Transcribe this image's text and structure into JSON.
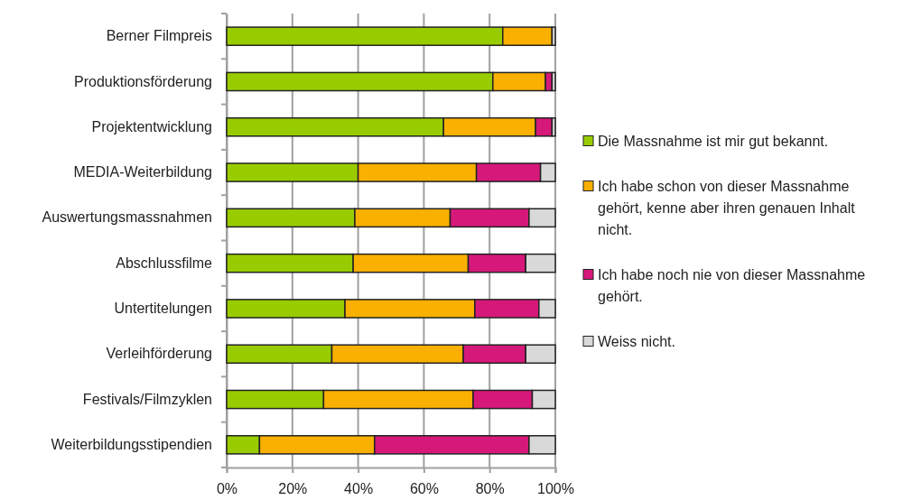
{
  "chart_data": {
    "type": "bar",
    "orientation": "horizontal",
    "stacked": true,
    "categories": [
      "Berner Filmpreis",
      "Produktionsförderung",
      "Projektentwicklung",
      "MEDIA-Weiterbildung",
      "Auswertungsmassnahmen",
      "Abschlussfilme",
      "Untertitelungen",
      "Verleihförderung",
      "Festivals/Filmzyklen",
      "Weiterbildungsstipendien"
    ],
    "series": [
      {
        "name": "Die Massnahme ist mir gut bekannt.",
        "color": "#99cc00",
        "values": [
          84,
          81,
          66,
          40,
          39,
          38.5,
          36,
          32,
          29.5,
          10
        ]
      },
      {
        "name": "Ich habe schon von dieser Massnahme gehört, kenne aber ihren genauen Inhalt nicht.",
        "color": "#f9b000",
        "values": [
          15,
          16,
          28,
          36,
          29,
          35,
          39.5,
          40,
          45.5,
          35
        ]
      },
      {
        "name": "Ich habe noch nie von dieser Massnahme gehört.",
        "color": "#d6187a",
        "values": [
          0,
          2,
          5,
          19.5,
          24,
          17.5,
          19.5,
          19,
          18,
          47
        ]
      },
      {
        "name": "Weiss nicht.",
        "color": "#d9d9d9",
        "values": [
          1,
          1,
          1,
          4.5,
          8,
          9,
          5,
          9,
          7,
          8
        ]
      }
    ],
    "xlim": [
      0,
      100
    ],
    "xticks": [
      {
        "value": 0,
        "label": "0%"
      },
      {
        "value": 20,
        "label": "20%"
      },
      {
        "value": 40,
        "label": "40%"
      },
      {
        "value": 60,
        "label": "60%"
      },
      {
        "value": 80,
        "label": "80%"
      },
      {
        "value": 100,
        "label": "100%"
      }
    ],
    "grid": "x",
    "legend": "right"
  }
}
